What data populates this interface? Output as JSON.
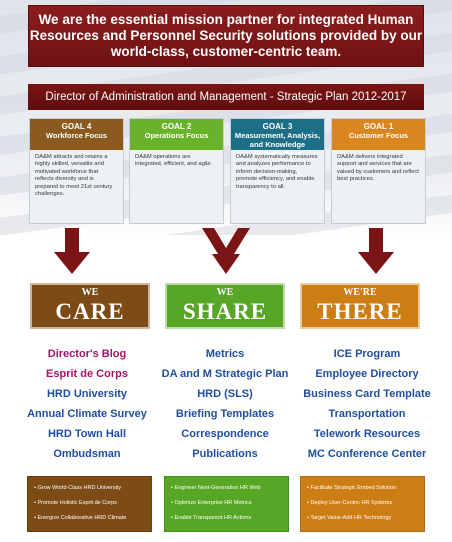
{
  "mission": "We are the essential mission partner for integrated Human Resources and Personnel Security solutions provided by our world-class, customer-centric team.",
  "plan_title": "Director of Administration and Management - Strategic Plan 2012-2017",
  "goals": [
    {
      "num": "GOAL 4",
      "focus": "Workforce Focus",
      "color": "#8a5a1f",
      "text": "DA&M attracts and retains a highly skilled, versatile and motivated workforce that reflects diversity and is prepared to meet 21st century challenges."
    },
    {
      "num": "GOAL 2",
      "focus": "Operations Focus",
      "color": "#69b32a",
      "text": "DA&M operations are integrated, efficient, and agile."
    },
    {
      "num": "GOAL 3",
      "focus": "Measurement, Analysis, and Knowledge Management",
      "color": "#1c6f86",
      "text": "DA&M systematically measures and analyzes performance to inform decision-making, promote efficiency, and enable transparency to all."
    },
    {
      "num": "GOAL 1",
      "focus": "Customer Focus",
      "color": "#d9861f",
      "text": "DA&M delivers integrated support and services that are valued by customers and reflect best practices."
    }
  ],
  "pillars": [
    {
      "we": "WE",
      "big": "CARE",
      "color": "#7d4b16"
    },
    {
      "we": "WE",
      "big": "SHARE",
      "color": "#58a626"
    },
    {
      "we": "WE'RE",
      "big": "THERE",
      "color": "#cc7d14"
    }
  ],
  "links": {
    "care": [
      "Director's Blog",
      "Esprit de Corps",
      "HRD University",
      "Annual Climate Survey",
      "HRD Town Hall",
      "Ombudsman"
    ],
    "share": [
      "Metrics",
      "DA and M Strategic Plan",
      "HRD (SLS)",
      "Briefing Templates",
      "Correspondence",
      "Publications"
    ],
    "there": [
      "ICE Program",
      "Employee Directory",
      "Business Card Template",
      "Transportation",
      "Telework Resources",
      "MC Conference Center"
    ]
  },
  "boxes": {
    "care": [
      "• Grow World-Class HRD University",
      "• Promote Holistic Esprit de Corps",
      "• Energize Collaborative HRD Climate"
    ],
    "share": [
      "• Engineer Next-Generation HR Web",
      "• Optimize Enterprise HR Metrics",
      "• Enable Transparent HR Actions"
    ],
    "there": [
      "• Facilitate Strategic Embed Solution",
      "• Deploy User-Centric HR Systems",
      "• Target Value-Add HR Technology"
    ]
  },
  "colors": {
    "link_blue": "#1f4e9e",
    "link_magenta": "#a4126a",
    "arrow_red": "#7b1414"
  }
}
